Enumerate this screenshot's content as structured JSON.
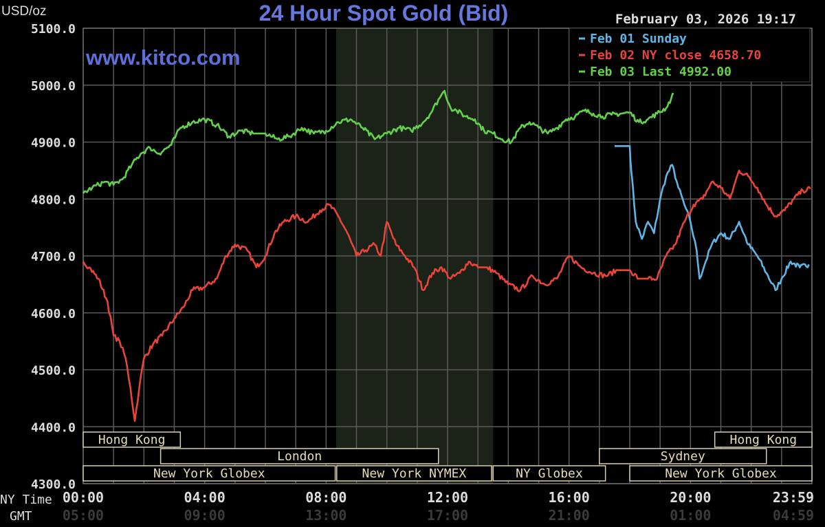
{
  "chart_data": {
    "type": "line",
    "title": "24 Hour Spot Gold (Bid)",
    "ylabel": "USD/oz",
    "watermark": "www.kitco.com",
    "timestamp": "February 03, 2026 19:17",
    "ylim": [
      4300,
      5100
    ],
    "y_ticks": [
      "5100.0",
      "5000.0",
      "4900.0",
      "4800.0",
      "4700.0",
      "4600.0",
      "4500.0",
      "4400.0",
      "4300.0"
    ],
    "x_range_hours": [
      0,
      24
    ],
    "ny_time_label": "NY Time",
    "gmt_label": "GMT",
    "x_ticks_ny": [
      "00:00",
      "04:00",
      "08:00",
      "12:00",
      "16:00",
      "20:00",
      "23:59"
    ],
    "x_ticks_gmt": [
      "05:00",
      "09:00",
      "13:00",
      "17:00",
      "21:00",
      "01:00",
      "04:59"
    ],
    "highlight_region_hours": [
      8.33,
      13.5
    ],
    "legend": [
      {
        "text": "Feb 01 Sunday",
        "color": "#5fb6e6"
      },
      {
        "text": "Feb 02 NY close 4658.70",
        "color": "#e8443a"
      },
      {
        "text": "Feb 03 Last 4992.00",
        "color": "#62d24a"
      }
    ],
    "series": [
      {
        "name": "Feb 01 Sunday",
        "color": "#5fb6e6",
        "x": [
          17.5,
          18.0,
          18.05,
          18.2,
          18.4,
          18.6,
          18.8,
          19.0,
          19.2,
          19.4,
          19.6,
          19.8,
          20.0,
          20.2,
          20.3,
          20.5,
          20.7,
          21.0,
          21.3,
          21.6,
          21.9,
          22.2,
          22.5,
          22.8,
          23.0,
          23.3,
          23.6,
          23.9
        ],
        "y": [
          4893,
          4893,
          4850,
          4760,
          4730,
          4760,
          4740,
          4800,
          4840,
          4860,
          4820,
          4790,
          4760,
          4710,
          4660,
          4690,
          4720,
          4740,
          4730,
          4760,
          4720,
          4700,
          4670,
          4640,
          4660,
          4690,
          4680,
          4685
        ]
      },
      {
        "name": "Feb 02 NY close 4658.70",
        "color": "#e8443a",
        "x": [
          0.0,
          0.2,
          0.5,
          0.8,
          1.0,
          1.2,
          1.4,
          1.55,
          1.7,
          1.85,
          2.0,
          2.3,
          2.6,
          3.0,
          3.3,
          3.6,
          4.0,
          4.4,
          4.7,
          5.0,
          5.4,
          5.7,
          6.0,
          6.3,
          6.6,
          7.0,
          7.4,
          7.8,
          8.1,
          8.4,
          8.7,
          9.0,
          9.3,
          9.6,
          9.8,
          10.0,
          10.3,
          10.6,
          10.9,
          11.2,
          11.5,
          11.8,
          12.1,
          12.4,
          12.7,
          13.0,
          13.3,
          13.6,
          14.0,
          14.4,
          14.8,
          15.2,
          15.6,
          16.0,
          16.4,
          16.8,
          17.2,
          17.6,
          18.0,
          18.3,
          18.6,
          18.9,
          19.2,
          19.5,
          19.8,
          20.1,
          20.4,
          20.7,
          21.0,
          21.3,
          21.6,
          21.9,
          22.2,
          22.5,
          22.8,
          23.1,
          23.4,
          23.7,
          23.95
        ],
        "y": [
          4690,
          4680,
          4660,
          4620,
          4560,
          4550,
          4520,
          4470,
          4410,
          4470,
          4520,
          4545,
          4560,
          4590,
          4610,
          4640,
          4645,
          4660,
          4700,
          4720,
          4710,
          4680,
          4700,
          4740,
          4760,
          4770,
          4760,
          4780,
          4790,
          4770,
          4740,
          4700,
          4710,
          4720,
          4700,
          4760,
          4720,
          4700,
          4680,
          4640,
          4670,
          4680,
          4660,
          4670,
          4690,
          4680,
          4680,
          4670,
          4650,
          4640,
          4665,
          4650,
          4660,
          4700,
          4680,
          4670,
          4665,
          4675,
          4675,
          4660,
          4660,
          4660,
          4700,
          4720,
          4760,
          4790,
          4800,
          4830,
          4820,
          4800,
          4850,
          4840,
          4820,
          4790,
          4770,
          4780,
          4800,
          4815,
          4818
        ]
      },
      {
        "name": "Feb 03 Last 4992.00",
        "color": "#62d24a",
        "x": [
          0.0,
          0.3,
          0.7,
          1.0,
          1.3,
          1.6,
          1.9,
          2.2,
          2.5,
          2.9,
          3.2,
          3.6,
          4.0,
          4.4,
          4.8,
          5.2,
          5.6,
          6.0,
          6.4,
          6.8,
          7.2,
          7.6,
          8.0,
          8.4,
          8.8,
          9.2,
          9.6,
          10.0,
          10.4,
          10.8,
          11.2,
          11.5,
          11.7,
          11.9,
          12.1,
          12.3,
          12.6,
          12.9,
          13.2,
          13.5,
          13.8,
          14.1,
          14.4,
          14.7,
          15.0,
          15.3,
          15.6,
          15.9,
          16.2,
          16.5,
          16.8,
          17.1,
          17.4,
          17.7,
          18.0,
          18.3,
          18.6,
          18.9,
          19.2,
          19.45
        ],
        "y": [
          4810,
          4820,
          4830,
          4825,
          4835,
          4860,
          4880,
          4890,
          4880,
          4895,
          4925,
          4935,
          4940,
          4930,
          4910,
          4920,
          4915,
          4915,
          4905,
          4910,
          4925,
          4915,
          4920,
          4935,
          4940,
          4925,
          4905,
          4915,
          4925,
          4920,
          4935,
          4955,
          4975,
          4990,
          4960,
          4955,
          4945,
          4940,
          4920,
          4915,
          4905,
          4900,
          4925,
          4935,
          4925,
          4915,
          4925,
          4940,
          4945,
          4955,
          4950,
          4945,
          4948,
          4950,
          4952,
          4935,
          4940,
          4950,
          4960,
          4985
        ]
      }
    ],
    "sessions": [
      {
        "label": "Hong Kong",
        "row": 0,
        "start": 0.0,
        "end": 3.2
      },
      {
        "label": "Hong Kong",
        "row": 0,
        "start": 20.8,
        "end": 24.0
      },
      {
        "label": "London",
        "row": 1,
        "start": 2.55,
        "end": 11.7
      },
      {
        "label": "Sydney",
        "row": 1,
        "start": 17.0,
        "end": 22.5
      },
      {
        "label": "New York Globex",
        "row": 2,
        "start": 0.0,
        "end": 8.3
      },
      {
        "label": "New York NYMEX",
        "row": 2,
        "start": 8.35,
        "end": 13.45
      },
      {
        "label": "NY Globex",
        "row": 2,
        "start": 13.5,
        "end": 17.2
      },
      {
        "label": "New York Globex",
        "row": 2,
        "start": 18.0,
        "end": 24.0
      }
    ]
  }
}
